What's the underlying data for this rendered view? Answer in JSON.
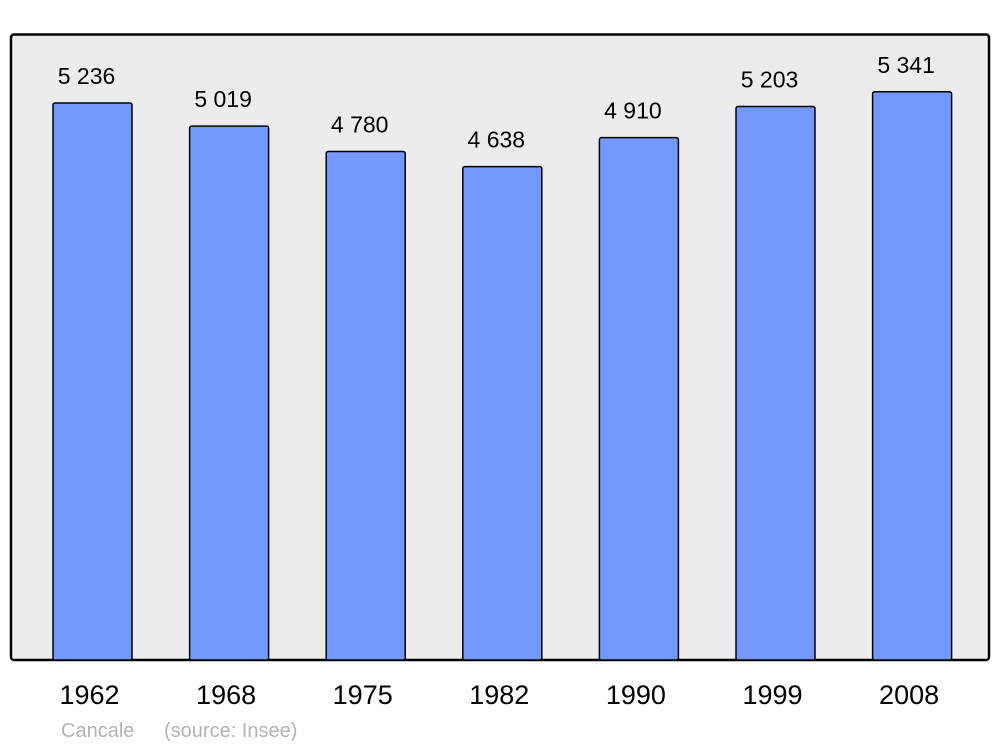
{
  "chart_data": {
    "type": "bar",
    "title": "",
    "xlabel": "",
    "ylabel": "",
    "categories": [
      "1962",
      "1968",
      "1975",
      "1982",
      "1990",
      "1999",
      "2008"
    ],
    "values": [
      5236,
      5019,
      4780,
      4638,
      4910,
      5203,
      5341
    ],
    "value_labels": [
      "5 236",
      "5 019",
      "4 780",
      "4 638",
      "4 910",
      "5 203",
      "5 341"
    ],
    "ylim": [
      0,
      5875
    ],
    "grid": false,
    "colors": {
      "bar": "#7399ff",
      "background": "#ececec",
      "border": "#000000"
    }
  },
  "caption": {
    "place": "Cancale",
    "source": "(source: Insee)"
  }
}
